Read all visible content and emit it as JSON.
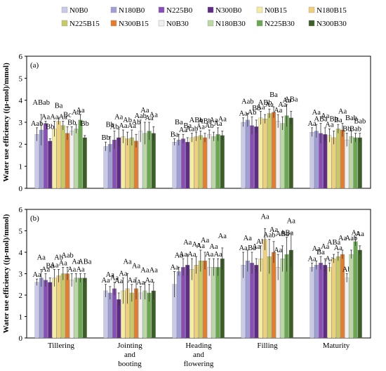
{
  "legend": [
    {
      "name": "N0B0",
      "color": "#c9c9e9"
    },
    {
      "name": "N180B0",
      "color": "#9f9fd6"
    },
    {
      "name": "N225B0",
      "color": "#8a4fb7"
    },
    {
      "name": "N300B0",
      "color": "#5e2b87"
    },
    {
      "name": "N0B15",
      "color": "#f4eda0"
    },
    {
      "name": "N180B15",
      "color": "#f0cf7a"
    },
    {
      "name": "N225B15",
      "color": "#c4cb63"
    },
    {
      "name": "N300B15",
      "color": "#e97c2a"
    },
    {
      "name": "N0B30",
      "color": "#f0f0f0"
    },
    {
      "name": "N180B30",
      "color": "#b9d8a2"
    },
    {
      "name": "N225B30",
      "color": "#6aa84f"
    },
    {
      "name": "N300B30",
      "color": "#3b5f27"
    }
  ],
  "chart_data": [
    {
      "type": "bar",
      "panel_label": "(a)",
      "ylabel": "Water use efficiency ((μ-mol)/mmol)",
      "ylim": [
        0,
        6
      ],
      "yticks": [
        "0",
        "1",
        "2",
        "3",
        "4",
        "5",
        "6"
      ],
      "categories": [
        "Tillering",
        "Jointing and booting",
        "Heading and flowering",
        "Filling",
        "Maturity"
      ],
      "series": [
        {
          "name": "N0B0",
          "values": [
            2.45,
            1.9,
            2.1,
            3.0,
            2.55
          ],
          "errors": [
            0.3,
            0.2,
            0.15,
            0.2,
            0.2
          ],
          "labels": [
            "Aab",
            "Bb",
            "Ba",
            "Aa",
            "Aa"
          ]
        },
        {
          "name": "N180B0",
          "values": [
            2.65,
            2.0,
            2.2,
            3.1,
            2.6
          ],
          "errors": [
            0.7,
            0.35,
            0.25,
            0.3,
            0.3
          ],
          "labels": [
            "ABab",
            "Bb",
            "Ba",
            "Aab",
            "Aa"
          ]
        },
        {
          "name": "N225B0",
          "values": [
            2.95,
            2.2,
            2.25,
            2.85,
            2.5
          ],
          "errors": [
            0.1,
            0.4,
            0.2,
            0.4,
            0.45
          ],
          "labels": [
            "Aa",
            "Ab",
            "Aa",
            "Ab",
            "ABa"
          ]
        },
        {
          "name": "N300B0",
          "values": [
            2.15,
            2.3,
            2.1,
            2.8,
            2.45
          ],
          "errors": [
            0.1,
            0.4,
            0.2,
            0.3,
            0.3
          ],
          "labels": [
            "Bb",
            "Aa",
            "Ba",
            "Bb",
            "Aa"
          ]
        },
        {
          "name": "N0B15",
          "values": [
            2.7,
            2.35,
            2.3,
            3.2,
            2.4
          ],
          "errors": [
            0.35,
            0.3,
            0.2,
            0.3,
            0.3
          ],
          "labels": [
            "Aa",
            "Aa",
            "Aab",
            "Aa",
            "Aa"
          ]
        },
        {
          "name": "N180B15",
          "values": [
            3.05,
            2.25,
            2.35,
            3.15,
            2.3
          ],
          "errors": [
            0.15,
            0.3,
            0.2,
            0.2,
            0.3
          ],
          "labels": [
            "Ba",
            "Ab",
            "ABb",
            "ABb",
            "Bb"
          ]
        },
        {
          "name": "N225B15",
          "values": [
            2.85,
            2.3,
            2.4,
            3.4,
            2.7
          ],
          "errors": [
            0.2,
            0.35,
            0.2,
            0.2,
            0.2
          ],
          "labels": [
            "Aa",
            "Aa",
            "Aa",
            "Aa",
            "Ba"
          ]
        },
        {
          "name": "N300B15",
          "values": [
            2.5,
            2.15,
            2.3,
            3.45,
            2.65
          ],
          "errors": [
            0.3,
            0.3,
            0.2,
            0.25,
            0.3
          ],
          "labels": [
            "Bc",
            "Ab",
            "ABb",
            "Ba",
            "Aa"
          ]
        },
        {
          "name": "N0B30",
          "values": [
            2.6,
            2.6,
            2.45,
            3.05,
            2.2
          ],
          "errors": [
            0.2,
            0.5,
            0.2,
            0.3,
            0.3
          ],
          "labels": [
            "Bb",
            "Aab",
            "Ab",
            "Aa",
            "Bb"
          ]
        },
        {
          "name": "N180B30",
          "values": [
            2.7,
            2.5,
            2.35,
            2.95,
            2.35
          ],
          "errors": [
            0.2,
            0.5,
            0.2,
            0.3,
            0.3
          ],
          "labels": [
            "Aa",
            "Aa",
            "Aa",
            "Aa",
            "Bab"
          ]
        },
        {
          "name": "N225B30",
          "values": [
            3.1,
            2.6,
            2.45,
            3.3,
            2.3
          ],
          "errors": [
            0.25,
            0.4,
            0.3,
            0.5,
            0.2
          ],
          "labels": [
            "Aa",
            "Aa",
            "Aa",
            "Aa",
            "Bab"
          ]
        },
        {
          "name": "N300B30",
          "values": [
            2.3,
            2.5,
            2.4,
            3.2,
            2.3
          ],
          "errors": [
            0.1,
            0.3,
            0.2,
            0.3,
            0.2
          ],
          "labels": [
            "Bb",
            "Aa",
            "Aa",
            "ABa",
            "Bab"
          ]
        }
      ]
    },
    {
      "type": "bar",
      "panel_label": "(b)",
      "ylabel": "Water use efficiency ((μ-mol)/mmol)",
      "ylim": [
        0,
        6
      ],
      "yticks": [
        "0",
        "1",
        "2",
        "3",
        "4",
        "5",
        "6"
      ],
      "categories": [
        "Tillering",
        "Jointing and booting",
        "Heading and flowering",
        "Filling",
        "Maturity"
      ],
      "series": [
        {
          "name": "N0B0",
          "values": [
            2.6,
            2.2,
            2.5,
            3.4,
            3.3
          ],
          "errors": [
            0.15,
            0.3,
            0.6,
            0.6,
            0.2
          ],
          "labels": [
            "Aa",
            "Aa",
            "Aa",
            "Aa",
            "Aa"
          ]
        },
        {
          "name": "N180B0",
          "values": [
            2.8,
            2.1,
            3.1,
            3.6,
            3.4
          ],
          "errors": [
            0.4,
            0.3,
            0.2,
            0.5,
            0.2
          ],
          "labels": [
            "Aa",
            "Aa",
            "Aa",
            "Aa",
            "Aa"
          ]
        },
        {
          "name": "N225B0",
          "values": [
            2.7,
            2.3,
            3.3,
            3.5,
            3.5
          ],
          "errors": [
            0.3,
            0.3,
            0.4,
            0.5,
            0.3
          ],
          "labels": [
            "Aa",
            "Aa",
            "Aa",
            "Ba",
            "Ba"
          ]
        },
        {
          "name": "N300B0",
          "values": [
            2.6,
            1.8,
            3.4,
            3.4,
            3.4
          ],
          "errors": [
            0.2,
            0.3,
            0.5,
            0.3,
            0.3
          ],
          "labels": [
            "Ba",
            "Aa",
            "Aa",
            "Aa",
            "Aa"
          ]
        },
        {
          "name": "N0B15",
          "values": [
            2.8,
            2.2,
            3.2,
            3.7,
            3.3
          ],
          "errors": [
            0.4,
            0.6,
            0.5,
            0.6,
            0.2
          ],
          "labels": [
            "Aa",
            "Aa",
            "Aa",
            "Ab",
            "Aa"
          ]
        },
        {
          "name": "N180B15",
          "values": [
            2.9,
            2.3,
            3.4,
            4.6,
            3.7
          ],
          "errors": [
            0.3,
            0.7,
            0.4,
            0.5,
            0.2
          ],
          "labels": [
            "Ab",
            "Aa",
            "Aa",
            "Aa",
            "ABa"
          ]
        },
        {
          "name": "N225B15",
          "values": [
            3.0,
            2.1,
            3.6,
            3.8,
            3.8
          ],
          "errors": [
            0.3,
            0.4,
            0.5,
            0.8,
            0.2
          ],
          "labels": [
            "Aa",
            "Aa",
            "Aa",
            "Aab",
            "Aa"
          ]
        },
        {
          "name": "N300B15",
          "values": [
            3.0,
            2.3,
            3.6,
            4.0,
            3.9
          ],
          "errors": [
            0.3,
            0.5,
            0.4,
            0.5,
            0.2
          ],
          "labels": [
            "Aab",
            "Aa",
            "Aa",
            "Aa",
            "Aa"
          ]
        },
        {
          "name": "N0B30",
          "values": [
            2.7,
            2.1,
            3.3,
            3.3,
            2.8
          ],
          "errors": [
            0.3,
            0.3,
            0.4,
            0.6,
            0.2
          ],
          "labels": [
            "Aa",
            "Aa",
            "Aa",
            "Aa",
            "Ab"
          ]
        },
        {
          "name": "N180B30",
          "values": [
            2.8,
            2.2,
            3.3,
            3.7,
            3.9
          ],
          "errors": [
            0.2,
            0.4,
            0.4,
            0.6,
            0.2
          ],
          "labels": [
            "Aa",
            "Aa",
            "Aa",
            "ABa",
            "Aab"
          ]
        },
        {
          "name": "N225B30",
          "values": [
            2.8,
            2.1,
            3.3,
            3.9,
            4.5
          ],
          "errors": [
            0.2,
            0.4,
            0.4,
            0.8,
            0.2
          ],
          "labels": [
            "Aa",
            "Aa",
            "Aa",
            "ABa",
            "Aa"
          ]
        },
        {
          "name": "N300B30",
          "values": [
            2.8,
            2.2,
            3.7,
            4.1,
            4.1
          ],
          "errors": [
            0.2,
            0.4,
            0.5,
            0.8,
            0.2
          ],
          "labels": [
            "ABa",
            "Aa",
            "Aa",
            "Aa",
            "Aa"
          ]
        }
      ]
    }
  ],
  "xaxis": {
    "category_lines": [
      [
        "Tillering"
      ],
      [
        "Jointing",
        "and",
        "booting"
      ],
      [
        "Heading",
        "and",
        "flowering"
      ],
      [
        "Filling"
      ],
      [
        "Maturity"
      ]
    ]
  }
}
